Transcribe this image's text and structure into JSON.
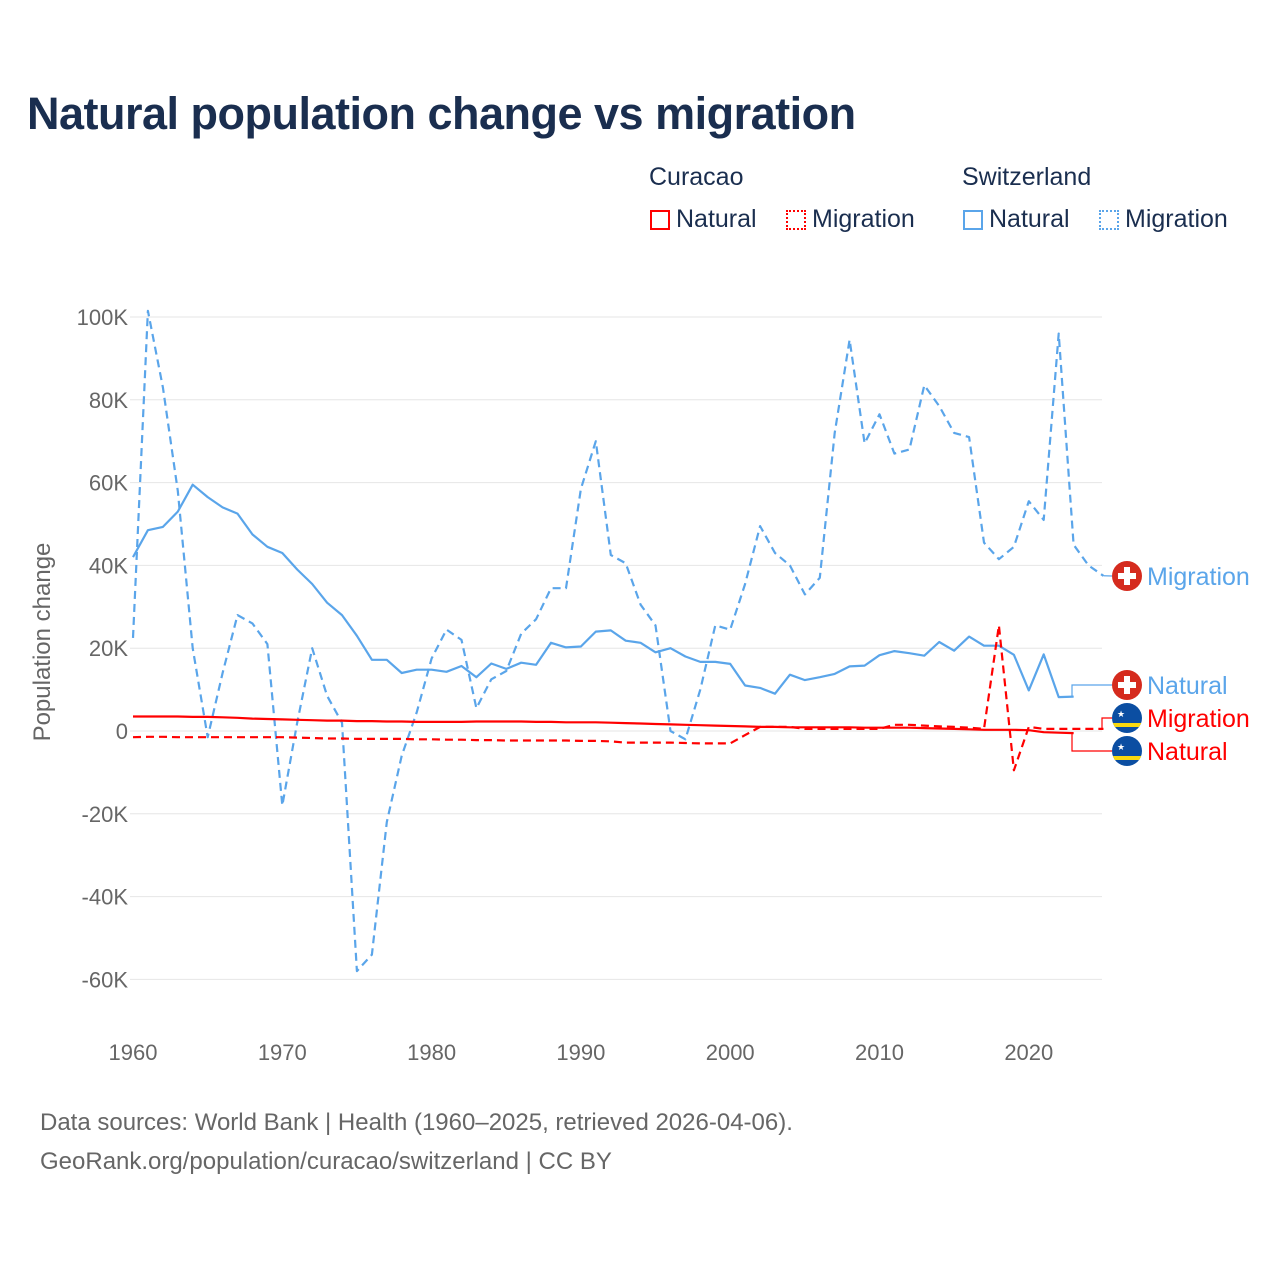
{
  "chart_data": {
    "type": "line",
    "title": "Natural population change vs migration",
    "xlabel": "",
    "ylabel": "Population change",
    "xlim": [
      1960,
      2025
    ],
    "ylim": [
      -70000,
      100000
    ],
    "x_ticks": [
      1960,
      1970,
      1980,
      1990,
      2000,
      2010,
      2020
    ],
    "x_tick_labels": [
      "1960",
      "1970",
      "1980",
      "1990",
      "2000",
      "2010",
      "2020"
    ],
    "y_ticks": [
      100000,
      80000,
      60000,
      40000,
      20000,
      0,
      -20000,
      -40000,
      -60000
    ],
    "y_tick_labels": [
      "100K",
      "80K",
      "60K",
      "40K",
      "20K",
      "0",
      "-20K",
      "-40K",
      "-60K"
    ],
    "grid": true,
    "legend_position": "top-right",
    "legend": {
      "groups": [
        {
          "name": "Curacao",
          "items": [
            "Natural",
            "Migration"
          ]
        },
        {
          "name": "Switzerland",
          "items": [
            "Natural",
            "Migration"
          ]
        }
      ]
    },
    "series": [
      {
        "name": "Switzerland Migration",
        "country": "Switzerland",
        "kind": "Migration",
        "color": "#5aa5ea",
        "dash": true,
        "start_year": 1960,
        "values": [
          22500,
          101500,
          83000,
          58000,
          20000,
          -1500,
          14000,
          28000,
          26000,
          21000,
          -18000,
          2000,
          20000,
          8500,
          2000,
          -58000,
          -54000,
          -22000,
          -6000,
          4500,
          17500,
          24500,
          22000,
          5500,
          12500,
          14500,
          23500,
          27000,
          34500,
          34500,
          58500,
          70000,
          42500,
          40500,
          30500,
          25500,
          0,
          -2000,
          10000,
          25500,
          24500,
          35500,
          49500,
          43000,
          40000,
          33000,
          37000,
          72000,
          94500,
          69500,
          76500,
          67000,
          68000,
          83500,
          78500,
          72000,
          71000,
          45500,
          41500,
          44500,
          55500,
          51000,
          96000,
          45000,
          40000,
          37500
        ]
      },
      {
        "name": "Switzerland Natural",
        "country": "Switzerland",
        "kind": "Natural",
        "color": "#5aa5ea",
        "dash": false,
        "start_year": 1960,
        "values": [
          42000,
          48500,
          49300,
          53000,
          59500,
          56500,
          54000,
          52500,
          47500,
          44500,
          43000,
          39000,
          35500,
          31000,
          28000,
          23000,
          17200,
          17200,
          14000,
          14800,
          14800,
          14300,
          15700,
          13000,
          16300,
          15000,
          16500,
          16000,
          21300,
          20200,
          20400,
          24000,
          24300,
          21800,
          21300,
          19000,
          20000,
          18000,
          16700,
          16700,
          16200,
          11000,
          10400,
          9000,
          13600,
          12300,
          13000,
          13800,
          15600,
          15800,
          18300,
          19300,
          18800,
          18200,
          21500,
          19400,
          22800,
          20600,
          20600,
          18400,
          9800,
          18500,
          8200,
          8300
        ]
      },
      {
        "name": "Curacao Migration",
        "country": "Curacao",
        "kind": "Migration",
        "color": "#ff0000",
        "dash": true,
        "start_year": 1960,
        "values": [
          -1500,
          -1400,
          -1400,
          -1500,
          -1500,
          -1500,
          -1500,
          -1500,
          -1500,
          -1500,
          -1500,
          -1600,
          -1700,
          -1800,
          -1800,
          -1900,
          -1900,
          -1900,
          -1900,
          -2000,
          -2000,
          -2100,
          -2100,
          -2200,
          -2200,
          -2300,
          -2300,
          -2300,
          -2300,
          -2300,
          -2400,
          -2400,
          -2500,
          -2800,
          -2800,
          -2800,
          -2800,
          -2900,
          -3000,
          -3000,
          -3000,
          -1000,
          1000,
          1000,
          1000,
          500,
          500,
          500,
          500,
          500,
          500,
          1500,
          1500,
          1300,
          1100,
          1000,
          800,
          500,
          25500,
          -9500,
          1000,
          500,
          500,
          500,
          500,
          500
        ]
      },
      {
        "name": "Curacao Natural",
        "country": "Curacao",
        "kind": "Natural",
        "color": "#ff0000",
        "dash": false,
        "start_year": 1960,
        "values": [
          3500,
          3500,
          3500,
          3500,
          3400,
          3400,
          3300,
          3200,
          3000,
          2900,
          2800,
          2700,
          2600,
          2500,
          2500,
          2400,
          2400,
          2300,
          2300,
          2200,
          2200,
          2200,
          2200,
          2300,
          2300,
          2300,
          2300,
          2200,
          2200,
          2100,
          2100,
          2100,
          2000,
          1900,
          1800,
          1700,
          1600,
          1500,
          1400,
          1300,
          1200,
          1100,
          1000,
          1000,
          900,
          900,
          900,
          900,
          900,
          800,
          800,
          800,
          800,
          700,
          600,
          500,
          400,
          300,
          300,
          300,
          200,
          -300,
          -400,
          -500
        ]
      }
    ],
    "end_labels": [
      {
        "text": "Migration",
        "country": "Switzerland",
        "flag": "switzerland-flag-icon",
        "color": "#5aa5ea"
      },
      {
        "text": "Natural",
        "country": "Switzerland",
        "flag": "switzerland-flag-icon",
        "color": "#5aa5ea"
      },
      {
        "text": "Migration",
        "country": "Curacao",
        "flag": "curacao-flag-icon",
        "color": "#ff0000"
      },
      {
        "text": "Natural",
        "country": "Curacao",
        "flag": "curacao-flag-icon",
        "color": "#ff0000"
      }
    ]
  },
  "footer": {
    "line1": "Data sources: World Bank | Health (1960–2025, retrieved 2026-04-06).",
    "line2": "GeoRank.org/population/curacao/switzerland | CC BY"
  }
}
